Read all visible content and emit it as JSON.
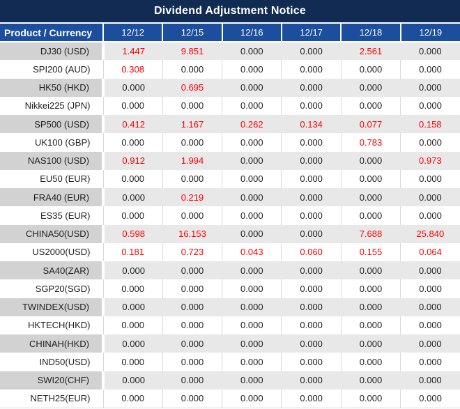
{
  "title": "Dividend Adjustment Notice",
  "colors": {
    "title_bg": "#112b52",
    "header_bg": "#1c4e9e",
    "band_product_bg": "#d2d2d2",
    "band_value_bg": "#e8e8e8",
    "grid_line": "#d9d9d9",
    "value_zero_color": "#1f1f1f",
    "value_nonzero_color": "#ff0000"
  },
  "table": {
    "header": [
      "Product / Currency",
      "12/12",
      "12/15",
      "12/16",
      "12/17",
      "12/18",
      "12/19"
    ],
    "rows": [
      {
        "product": "DJ30 (USD)",
        "values": [
          "1.447",
          "9.851",
          "0.000",
          "0.000",
          "2.561",
          "0.000"
        ]
      },
      {
        "product": "SPI200 (AUD)",
        "values": [
          "0.308",
          "0.000",
          "0.000",
          "0.000",
          "0.000",
          "0.000"
        ]
      },
      {
        "product": "HK50 (HKD)",
        "values": [
          "0.000",
          "0.695",
          "0.000",
          "0.000",
          "0.000",
          "0.000"
        ]
      },
      {
        "product": "Nikkei225 (JPN)",
        "values": [
          "0.000",
          "0.000",
          "0.000",
          "0.000",
          "0.000",
          "0.000"
        ]
      },
      {
        "product": "SP500 (USD)",
        "values": [
          "0.412",
          "1.167",
          "0.262",
          "0.134",
          "0.077",
          "0.158"
        ]
      },
      {
        "product": "UK100 (GBP)",
        "values": [
          "0.000",
          "0.000",
          "0.000",
          "0.000",
          "0.783",
          "0.000"
        ]
      },
      {
        "product": "NAS100 (USD)",
        "values": [
          "0.912",
          "1.994",
          "0.000",
          "0.000",
          "0.000",
          "0.973"
        ]
      },
      {
        "product": "EU50 (EUR)",
        "values": [
          "0.000",
          "0.000",
          "0.000",
          "0.000",
          "0.000",
          "0.000"
        ]
      },
      {
        "product": "FRA40 (EUR)",
        "values": [
          "0.000",
          "0.219",
          "0.000",
          "0.000",
          "0.000",
          "0.000"
        ]
      },
      {
        "product": "ES35 (EUR)",
        "values": [
          "0.000",
          "0.000",
          "0.000",
          "0.000",
          "0.000",
          "0.000"
        ]
      },
      {
        "product": "CHINA50(USD)",
        "values": [
          "0.598",
          "16.153",
          "0.000",
          "0.000",
          "7.688",
          "25.840"
        ]
      },
      {
        "product": "US2000(USD)",
        "values": [
          "0.181",
          "0.723",
          "0.043",
          "0.060",
          "0.155",
          "0.064"
        ]
      },
      {
        "product": "SA40(ZAR)",
        "values": [
          "0.000",
          "0.000",
          "0.000",
          "0.000",
          "0.000",
          "0.000"
        ]
      },
      {
        "product": "SGP20(SGD)",
        "values": [
          "0.000",
          "0.000",
          "0.000",
          "0.000",
          "0.000",
          "0.000"
        ]
      },
      {
        "product": "TWINDEX(USD)",
        "values": [
          "0.000",
          "0.000",
          "0.000",
          "0.000",
          "0.000",
          "0.000"
        ]
      },
      {
        "product": "HKTECH(HKD)",
        "values": [
          "0.000",
          "0.000",
          "0.000",
          "0.000",
          "0.000",
          "0.000"
        ]
      },
      {
        "product": "CHINAH(HKD)",
        "values": [
          "0.000",
          "0.000",
          "0.000",
          "0.000",
          "0.000",
          "0.000"
        ]
      },
      {
        "product": "IND50(USD)",
        "values": [
          "0.000",
          "0.000",
          "0.000",
          "0.000",
          "0.000",
          "0.000"
        ]
      },
      {
        "product": "SWI20(CHF)",
        "values": [
          "0.000",
          "0.000",
          "0.000",
          "0.000",
          "0.000",
          "0.000"
        ]
      },
      {
        "product": "NETH25(EUR)",
        "values": [
          "0.000",
          "0.000",
          "0.000",
          "0.000",
          "0.000",
          "0.000"
        ]
      }
    ]
  }
}
